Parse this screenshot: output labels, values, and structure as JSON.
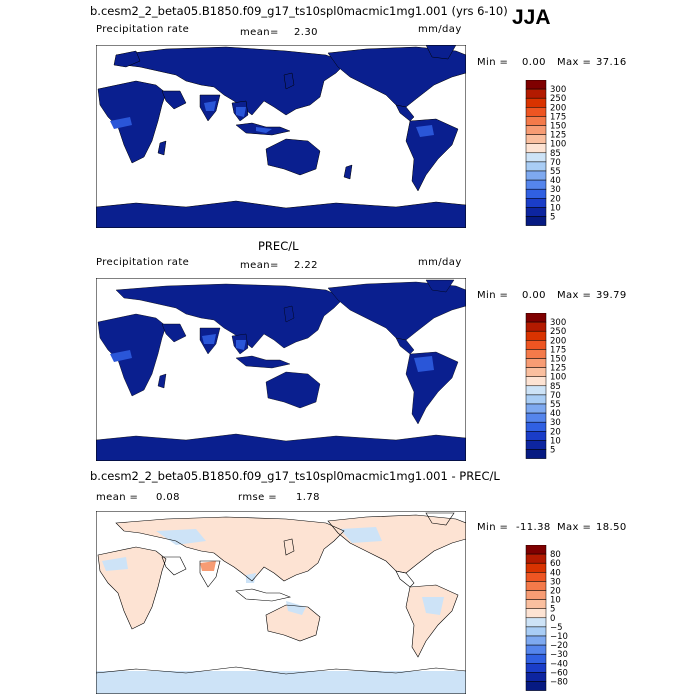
{
  "header": {
    "title1": "b.cesm2_2_beta05.B1850.f09_g17_ts10spl0macmic1mg1.001 (yrs 6-10)",
    "season": "JJA"
  },
  "panel1": {
    "field": "Precipitation rate",
    "mean_label": "mean=",
    "mean_value": "2.30",
    "units": "mm/day",
    "min_label": "Min =",
    "min_value": "0.00",
    "max_label": "Max =",
    "max_value": "37.16"
  },
  "panel2": {
    "title": "PREC/L",
    "field": "Precipitation rate",
    "mean_label": "mean=",
    "mean_value": "2.22",
    "units": "mm/day",
    "min_label": "Min =",
    "min_value": "0.00",
    "max_label": "Max =",
    "max_value": "39.79"
  },
  "panel3": {
    "title": "b.cesm2_2_beta05.B1850.f09_g17_ts10spl0macmic1mg1.001 - PREC/L",
    "mean_label": "mean =",
    "mean_value": "0.08",
    "rmse_label": "rmse =",
    "rmse_value": "1.78",
    "min_label": "Min =",
    "min_value": "-11.38",
    "max_label": "Max =",
    "max_value": "18.50"
  },
  "colorbar_abs": {
    "levels": [
      "300",
      "250",
      "200",
      "175",
      "150",
      "125",
      "100",
      "85",
      "70",
      "55",
      "40",
      "30",
      "20",
      "10",
      "5"
    ],
    "colors": [
      "#7f0000",
      "#b31a00",
      "#d93300",
      "#ee5522",
      "#f47a4a",
      "#f79c74",
      "#fabf9f",
      "#fde3d3",
      "#cde3f7",
      "#a9cdf5",
      "#7ea9f0",
      "#5585ec",
      "#3060e2",
      "#1a3dc8",
      "#0d25a0",
      "#061a82"
    ]
  },
  "colorbar_diff": {
    "levels": [
      "80",
      "60",
      "40",
      "30",
      "20",
      "10",
      "5",
      "0",
      "−5",
      "−10",
      "−20",
      "−30",
      "−40",
      "−60",
      "−80"
    ],
    "colors": [
      "#7f0000",
      "#b31a00",
      "#d93300",
      "#ee5522",
      "#f47a4a",
      "#f79c74",
      "#fabf9f",
      "#fde3d3",
      "#cde3f7",
      "#a9cdf5",
      "#7ea9f0",
      "#5585ec",
      "#3060e2",
      "#1a3dc8",
      "#0d25a0",
      "#061a82"
    ]
  }
}
